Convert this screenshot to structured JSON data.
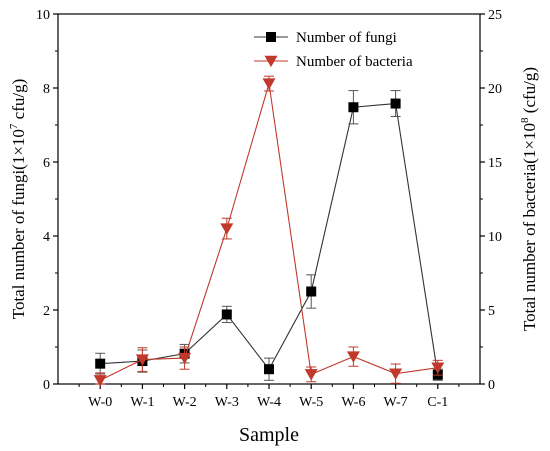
{
  "chart_data": {
    "type": "line",
    "categories": [
      "W-0",
      "W-1",
      "W-2",
      "W-3",
      "W-4",
      "W-5",
      "W-6",
      "W-7",
      "C-1"
    ],
    "xlabel": "Sample",
    "ylabel_left": "Total number of fungi(1×10",
    "ylabel_left_sup": "7",
    "ylabel_left_suffix": " cfu/g)",
    "ylabel_right": "Total number of bacteria(1×10",
    "ylabel_right_sup": "8",
    "ylabel_right_suffix": " (cfu/g)",
    "ylim_left": [
      0,
      10
    ],
    "ylim_right": [
      0,
      25
    ],
    "yticks_left": [
      0,
      2,
      4,
      6,
      8,
      10
    ],
    "yticks_right": [
      0,
      5,
      10,
      15,
      20,
      25
    ],
    "legend_position": "top-right",
    "grid": false,
    "series": [
      {
        "name": "Number of fungi",
        "axis": "left",
        "marker": "square",
        "color": "#000000",
        "values": [
          0.55,
          0.62,
          0.82,
          1.88,
          0.4,
          2.5,
          7.48,
          7.58,
          0.25
        ],
        "errors": [
          0.28,
          0.3,
          0.25,
          0.22,
          0.3,
          0.45,
          0.45,
          0.35,
          0.15
        ]
      },
      {
        "name": "Number of bacteria",
        "axis": "right",
        "marker": "triangle-down",
        "color": "#c0392b",
        "values": [
          0.25,
          1.65,
          1.75,
          10.5,
          20.3,
          0.65,
          1.85,
          0.7,
          1.1
        ],
        "errors": [
          0.5,
          0.8,
          0.75,
          0.7,
          0.5,
          0.5,
          0.65,
          0.65,
          0.5
        ]
      }
    ]
  }
}
